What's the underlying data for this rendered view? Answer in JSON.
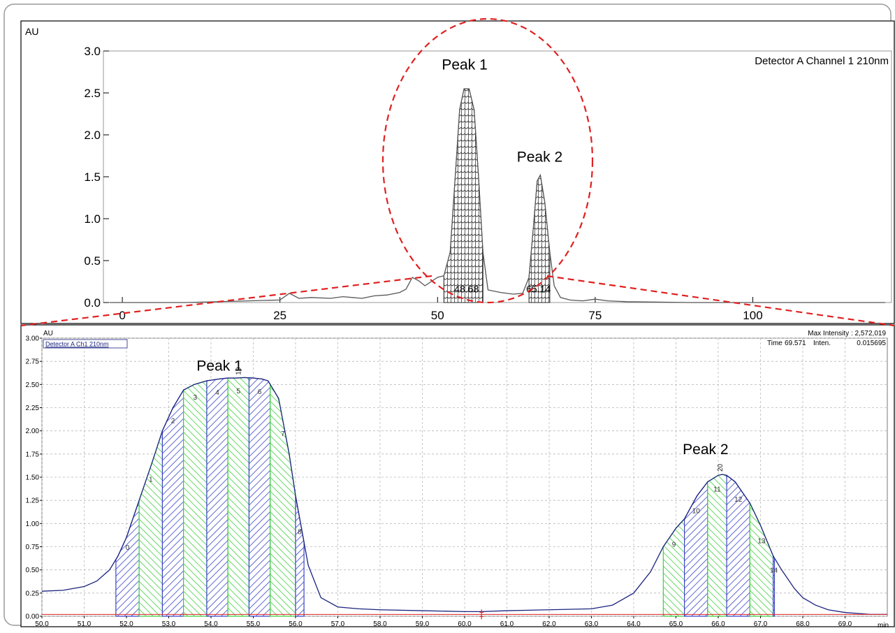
{
  "colors": {
    "trace": "#555555",
    "zoom_trace": "#1a237e",
    "hatch_blue": "#3a44c8",
    "hatch_green": "#3fcf3f",
    "ellipse": "#e02020",
    "baseline": "#e02020"
  },
  "chart_data": [
    {
      "type": "line",
      "name": "overview-chromatogram",
      "ylabel": "AU",
      "legend": "Detector A Channel 1 210nm",
      "xlim": [
        -3,
        122
      ],
      "ylim": [
        0,
        3.0
      ],
      "x_ticks": [
        0,
        25,
        50,
        75,
        100
      ],
      "y_ticks": [
        0.0,
        0.5,
        1.0,
        1.5,
        2.0,
        2.5,
        3.0
      ],
      "y_tick_labels": [
        "0.0",
        "0.5",
        "1.0",
        "1.5",
        "2.0",
        "2.5",
        "3.0"
      ],
      "grid": false,
      "series": [
        {
          "x": [
            -2,
            10,
            20,
            25,
            26.5,
            28,
            30,
            33,
            35,
            38,
            40,
            42,
            44,
            45,
            46,
            47,
            48,
            49,
            50,
            51,
            52,
            52.8,
            53.5,
            54.2,
            55,
            55.8,
            56.5,
            57.2,
            58,
            60,
            62,
            63.5,
            64.5,
            65.2,
            65.8,
            66.3,
            67,
            67.8,
            68.5,
            69.5,
            71,
            73,
            75,
            77,
            80,
            90,
            100,
            110,
            121
          ],
          "y": [
            0.0,
            0.0,
            0.02,
            0.03,
            0.11,
            0.05,
            0.06,
            0.05,
            0.07,
            0.05,
            0.08,
            0.09,
            0.12,
            0.16,
            0.3,
            0.26,
            0.2,
            0.25,
            0.3,
            0.32,
            0.6,
            1.5,
            2.3,
            2.55,
            2.55,
            2.3,
            1.5,
            0.6,
            0.15,
            0.12,
            0.1,
            0.11,
            0.3,
            0.9,
            1.45,
            1.52,
            1.2,
            0.6,
            0.2,
            0.06,
            0.03,
            0.02,
            0.04,
            0.02,
            0.01,
            0.0,
            0.0,
            0.0,
            0.0
          ]
        }
      ],
      "annotations": [
        {
          "text": "Peak 1",
          "x": 54.3,
          "y": 2.78
        },
        {
          "text": "Peak 2",
          "x": 66.2,
          "y": 1.68
        },
        {
          "text": "48.68",
          "x": 54.6,
          "y": 0.12
        },
        {
          "text": "65.14",
          "x": 66.0,
          "y": 0.12
        }
      ]
    },
    {
      "type": "area",
      "name": "zoomed-chromatogram",
      "ylabel": "AU",
      "xlabel": "min",
      "legend": "Detector A Ch1 210nm",
      "info_line_1": "Max Intensity : 2,572,019",
      "info_line_2_time_label": "Time",
      "info_line_2_time_value": "69.571",
      "info_line_2_inten_label": "Inten.",
      "info_line_2_inten_value": "0.015695",
      "xlim": [
        50.0,
        70.0
      ],
      "ylim": [
        0.0,
        3.0
      ],
      "x_ticks": [
        50.0,
        51.0,
        52.0,
        53.0,
        54.0,
        55.0,
        56.0,
        57.0,
        58.0,
        59.0,
        60.0,
        61.0,
        62.0,
        63.0,
        64.0,
        65.0,
        66.0,
        67.0,
        68.0,
        69.0
      ],
      "x_tick_labels": [
        "50.0",
        "51.0",
        "52.0",
        "53.0",
        "54.0",
        "55.0",
        "56.0",
        "57.0",
        "58.0",
        "59.0",
        "60.0",
        "61.0",
        "62.0",
        "63.0",
        "64.0",
        "65.0",
        "66.0",
        "67.0",
        "68.0",
        "69.0"
      ],
      "y_ticks": [
        0.0,
        0.25,
        0.5,
        0.75,
        1.0,
        1.25,
        1.5,
        1.75,
        2.0,
        2.25,
        2.5,
        2.75,
        3.0
      ],
      "y_tick_labels": [
        "0.00",
        "0.25",
        "0.50",
        "0.75",
        "1.00",
        "1.25",
        "1.50",
        "1.75",
        "2.00",
        "2.25",
        "2.50",
        "2.75",
        "3.00"
      ],
      "grid": true,
      "series": [
        {
          "x": [
            50.0,
            50.5,
            51.0,
            51.3,
            51.6,
            51.8,
            52.0,
            52.3,
            52.6,
            52.85,
            53.1,
            53.35,
            53.6,
            53.9,
            54.2,
            54.4,
            54.6,
            54.8,
            55.0,
            55.2,
            55.35,
            55.6,
            55.85,
            56.0,
            56.1,
            56.3,
            56.6,
            57.0,
            57.5,
            58.0,
            59.0,
            60.0,
            60.4,
            61.0,
            62.0,
            63.0,
            63.5,
            64.0,
            64.4,
            64.7,
            65.0,
            65.2,
            65.5,
            65.75,
            66.0,
            66.1,
            66.2,
            66.4,
            66.75,
            67.0,
            67.3,
            67.5,
            67.8,
            68.0,
            68.3,
            68.6,
            69.0,
            69.3,
            69.6,
            70.0
          ],
          "y": [
            0.27,
            0.28,
            0.32,
            0.38,
            0.5,
            0.65,
            0.85,
            1.25,
            1.65,
            2.0,
            2.25,
            2.44,
            2.5,
            2.54,
            2.56,
            2.57,
            2.57,
            2.575,
            2.57,
            2.56,
            2.54,
            2.35,
            1.75,
            1.3,
            1.05,
            0.55,
            0.2,
            0.1,
            0.08,
            0.07,
            0.06,
            0.05,
            0.05,
            0.06,
            0.07,
            0.08,
            0.12,
            0.25,
            0.48,
            0.75,
            0.95,
            1.05,
            1.3,
            1.45,
            1.52,
            1.53,
            1.52,
            1.45,
            1.22,
            0.98,
            0.65,
            0.5,
            0.3,
            0.2,
            0.12,
            0.07,
            0.04,
            0.03,
            0.02,
            0.02
          ]
        }
      ],
      "fractions": [
        {
          "label": "0",
          "x0": 51.75,
          "x1": 52.3
        },
        {
          "label": "1",
          "x0": 52.3,
          "x1": 52.85
        },
        {
          "label": "2",
          "x0": 52.85,
          "x1": 53.35
        },
        {
          "label": "3",
          "x0": 53.35,
          "x1": 53.9
        },
        {
          "label": "4",
          "x0": 53.9,
          "x1": 54.4
        },
        {
          "label": "5",
          "x0": 54.4,
          "x1": 54.9
        },
        {
          "label": "6",
          "x0": 54.9,
          "x1": 55.4
        },
        {
          "label": "7",
          "x0": 55.4,
          "x1": 56.0
        },
        {
          "label": "8",
          "x0": 56.0,
          "x1": 56.2
        },
        {
          "label": "9",
          "x0": 64.7,
          "x1": 65.2
        },
        {
          "label": "10",
          "x0": 65.2,
          "x1": 65.75
        },
        {
          "label": "11",
          "x0": 65.75,
          "x1": 66.2
        },
        {
          "label": "12",
          "x0": 66.2,
          "x1": 66.75
        },
        {
          "label": "13",
          "x0": 66.75,
          "x1": 67.3
        },
        {
          "label": "14",
          "x0": 67.3,
          "x1": 67.33
        }
      ],
      "peak_markers": [
        {
          "label": "19",
          "x": 54.7
        },
        {
          "label": "20",
          "x": 66.1
        }
      ],
      "annotations": [
        {
          "text": "Peak 1",
          "x": 54.2,
          "y": 2.65
        },
        {
          "text": "Peak 2",
          "x": 65.7,
          "y": 1.75
        }
      ]
    }
  ]
}
